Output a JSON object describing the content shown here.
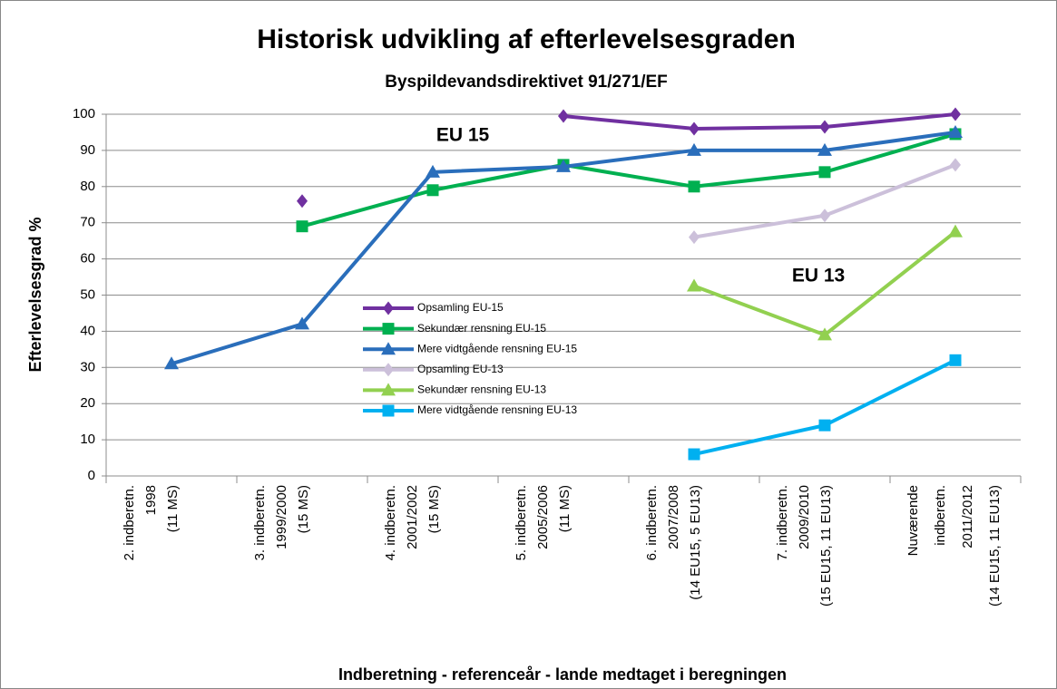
{
  "chart_data": {
    "type": "line",
    "title": "Historisk udvikling af efterlevelsesgraden",
    "subtitle": "Byspildevandsdirektivet 91/271/EF",
    "y_label": "Efterlevelsesgrad %",
    "x_label": "Indberetning - referenceår - lande medtaget i beregningen",
    "annotations": [
      "EU 15",
      "EU 13"
    ],
    "categories": [
      "2. indberetn.\n1998\n(11 MS)",
      "3. indberetn.\n1999/2000\n(15 MS)",
      "4. indberetn.\n2001/2002\n(15 MS)",
      "5. indberetn.\n2005/2006\n(11 MS)",
      "6. indberetn.\n2007/2008\n(14 EU15, 5 EU13)",
      "7. indberetn.\n2009/2010\n(15 EU15, 11 EU13)",
      "Nuværende\nindberetn.\n2011/2012\n(14 EU15, 11 EU13)"
    ],
    "series": [
      {
        "name": "Opsamling EU-15",
        "color": "#7030a0",
        "marker": "diamond",
        "values": [
          null,
          76,
          null,
          99.5,
          96,
          96.5,
          100
        ]
      },
      {
        "name": "Sekundær rensning EU-15",
        "color": "#00b050",
        "marker": "square",
        "values": [
          null,
          69,
          79,
          86,
          80,
          84,
          94.5
        ]
      },
      {
        "name": "Mere vidtgående rensning EU-15",
        "color": "#2a6ebb",
        "marker": "triangle",
        "values": [
          31,
          42,
          84,
          85.5,
          90,
          90,
          95
        ]
      },
      {
        "name": "Opsamling EU-13",
        "color": "#ccc0da",
        "marker": "diamond",
        "values": [
          null,
          null,
          null,
          null,
          66,
          72,
          86
        ]
      },
      {
        "name": "Sekundær rensning EU-13",
        "color": "#92d050",
        "marker": "triangle",
        "values": [
          null,
          null,
          null,
          null,
          52.5,
          39,
          67.5
        ]
      },
      {
        "name": "Mere vidtgående rensning EU-13",
        "color": "#00b0f0",
        "marker": "square",
        "values": [
          null,
          null,
          null,
          null,
          6,
          14,
          32
        ]
      }
    ],
    "ylim": [
      0,
      100
    ],
    "yticks": [
      0,
      10,
      20,
      30,
      40,
      50,
      60,
      70,
      80,
      90,
      100
    ],
    "grid": true
  }
}
